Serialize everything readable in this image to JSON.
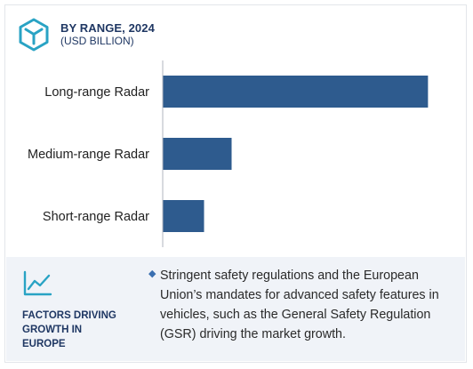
{
  "header": {
    "title": "BY RANGE, 2024",
    "subtitle": "(USD BILLION)",
    "logo_icon": "cube-logo-icon"
  },
  "chart_data": {
    "type": "bar",
    "orientation": "horizontal",
    "categories": [
      "Long-range Radar",
      "Medium-range Radar",
      "Short-range Radar"
    ],
    "values": [
      7.7,
      2.0,
      1.2
    ],
    "bar_color": "#2e5b8e",
    "axis_color": "#b0b6bf",
    "xlim": [
      0,
      8
    ],
    "gridlines": false,
    "value_labels": false
  },
  "footer": {
    "icon": "trend-line-icon",
    "label": "FACTORS DRIVING\nGROWTH IN\nEUROPE",
    "bullet_icon": "diamond-bullet-icon",
    "text": "Stringent safety regulations and the European Union’s mandates for advanced safety features in vehicles, such as the General Safety Regulation (GSR) driving the market growth."
  },
  "colors": {
    "accent": "#2e5b8e",
    "brand_teal": "#29a3c4",
    "title": "#1f3763",
    "footer_bg": "#f0f3f8"
  }
}
